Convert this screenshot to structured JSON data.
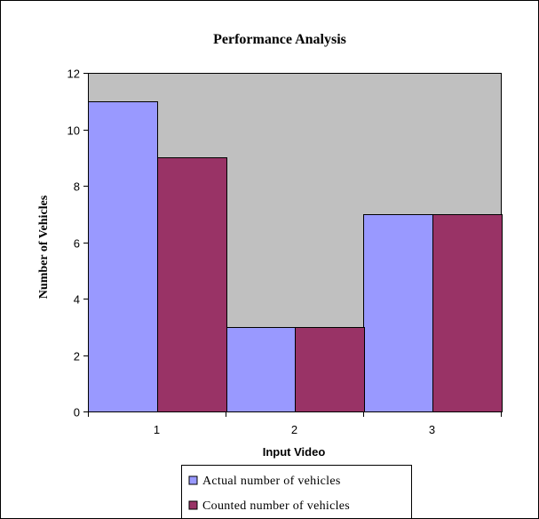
{
  "chart_data": {
    "type": "bar",
    "title": "Performance Analysis",
    "xlabel": "Input Video",
    "ylabel": "Number of Vehicles",
    "categories": [
      "1",
      "2",
      "3"
    ],
    "series": [
      {
        "name": "Actual number of vehicles",
        "values": [
          11,
          3,
          7
        ],
        "color": "#9999ff"
      },
      {
        "name": "Counted number of vehicles",
        "values": [
          9,
          3,
          7
        ],
        "color": "#993366"
      }
    ],
    "ylim": [
      0,
      12
    ],
    "yticks": [
      0,
      2,
      4,
      6,
      8,
      10,
      12
    ],
    "plot_background": "#c0c0c0",
    "grid": false,
    "legend_position": "bottom"
  }
}
